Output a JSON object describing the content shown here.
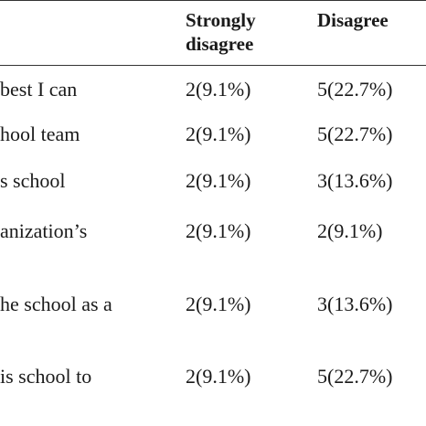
{
  "table": {
    "columns": [
      "Strongly disagree",
      "Disagree"
    ],
    "header_lines": {
      "col1": [
        "Strongly",
        "disagree"
      ],
      "col2": [
        "Disagree"
      ]
    },
    "rows": [
      {
        "label": "best I can",
        "strongly_disagree": "2(9.1%)",
        "disagree": "5(22.7%)"
      },
      {
        "label": "hool team",
        "strongly_disagree": "2(9.1%)",
        "disagree": "5(22.7%)"
      },
      {
        "label": "s school",
        "strongly_disagree": "2(9.1%)",
        "disagree": "3(13.6%)"
      },
      {
        "label": "anization’s",
        "strongly_disagree": "2(9.1%)",
        "disagree": "2(9.1%)"
      },
      {
        "label": "he school as a",
        "strongly_disagree": "2(9.1%)",
        "disagree": "3(13.6%)"
      },
      {
        "label": "is school to",
        "strongly_disagree": "2(9.1%)",
        "disagree": "5(22.7%)"
      }
    ]
  }
}
